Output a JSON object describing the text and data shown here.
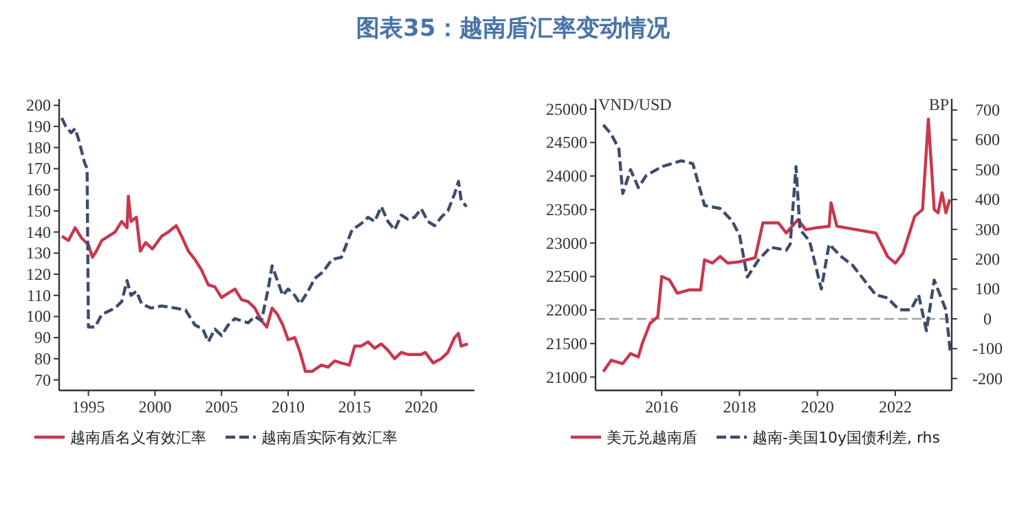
{
  "chart_data": [
    {
      "type": "line",
      "title": "图表35：越南盾汇率变动情况",
      "xlim": [
        1992.8,
        2024
      ],
      "xticks": [
        1995,
        2000,
        2005,
        2010,
        2015,
        2020
      ],
      "ylim": [
        65,
        203
      ],
      "yticks": [
        70,
        80,
        90,
        100,
        110,
        120,
        130,
        140,
        150,
        160,
        170,
        180,
        190,
        200
      ],
      "grid": false,
      "legend": "bottom",
      "series": [
        {
          "name": "越南盾名义有效汇率",
          "color": "#c8374e",
          "line_style": "solid",
          "x": [
            1993,
            1993.5,
            1994,
            1994.5,
            1995,
            1995.3,
            1995.6,
            1996,
            1997,
            1997.5,
            1997.9,
            1998,
            1998.2,
            1998.6,
            1998.9,
            1999.3,
            1999.8,
            2000.5,
            2001,
            2001.6,
            2002,
            2002.5,
            2003,
            2003.5,
            2004,
            2004.5,
            2005,
            2005.5,
            2006,
            2006.5,
            2007,
            2007.5,
            2008,
            2008.4,
            2008.8,
            2009.2,
            2009.6,
            2010,
            2010.5,
            2010.9,
            2011.3,
            2011.8,
            2012.5,
            2013,
            2013.5,
            2014,
            2014.6,
            2015,
            2015.5,
            2016,
            2016.5,
            2017,
            2017.5,
            2018,
            2018.5,
            2019,
            2020,
            2020.3,
            2020.9,
            2021.5,
            2022,
            2022.5,
            2022.8,
            2023,
            2023.5
          ],
          "values": [
            138,
            136,
            142,
            137,
            134,
            128,
            131,
            136,
            140,
            145,
            142,
            157,
            145,
            147,
            131,
            135,
            132,
            138,
            140,
            143,
            138,
            131,
            127,
            122,
            115,
            114,
            109,
            111,
            113,
            108,
            107,
            104,
            98,
            95,
            104,
            101,
            96,
            89,
            90,
            83,
            74,
            74,
            77,
            76,
            79,
            78,
            77,
            86,
            86,
            88,
            85,
            87,
            84,
            80,
            83,
            82,
            82,
            83,
            78,
            80,
            83,
            90,
            92,
            86,
            87
          ]
        },
        {
          "name": "越南盾实际有效汇率",
          "color": "#3d4b6c",
          "line_style": "dashed",
          "x": [
            1993,
            1993.3,
            1993.7,
            1994,
            1994.3,
            1994.7,
            1994.9,
            1995,
            1995.5,
            1996,
            1997,
            1997.5,
            1997.9,
            1998.2,
            1998.6,
            1999,
            1999.7,
            2000.5,
            2001.5,
            2002.3,
            2003,
            2003.6,
            2004,
            2004.5,
            2005,
            2005.5,
            2006,
            2007,
            2007.5,
            2008,
            2008.5,
            2008.8,
            2009.2,
            2009.6,
            2010,
            2010.5,
            2010.9,
            2011.5,
            2012,
            2012.6,
            2013.3,
            2014,
            2014.8,
            2015.5,
            2016,
            2016.5,
            2017,
            2017.5,
            2018,
            2018.5,
            2019,
            2019.5,
            2020,
            2020.5,
            2021,
            2021.5,
            2022,
            2022.5,
            2022.8,
            2023,
            2023.4
          ],
          "values": [
            194,
            190,
            187,
            189,
            183,
            173,
            170,
            95,
            95,
            101,
            104,
            107,
            117,
            110,
            112,
            106,
            104,
            105,
            104,
            103,
            96,
            94,
            88,
            94,
            91,
            96,
            99,
            97,
            100,
            98,
            113,
            124,
            117,
            110,
            113,
            110,
            106,
            112,
            118,
            121,
            127,
            128,
            141,
            144,
            147,
            145,
            152,
            145,
            141,
            148,
            146,
            147,
            151,
            145,
            143,
            147,
            150,
            158,
            164,
            155,
            152
          ]
        }
      ]
    },
    {
      "type": "line",
      "xlim": [
        2014.3,
        2023.45
      ],
      "xticks": [
        2016,
        2018,
        2020,
        2022
      ],
      "ylim": [
        20800,
        25150
      ],
      "yticks": [
        21000,
        21500,
        22000,
        22500,
        23000,
        23500,
        24000,
        24500,
        25000
      ],
      "y2lim": [
        -240,
        737
      ],
      "y2ticks": [
        {
          "value": -200,
          "label": "-200"
        },
        {
          "value": -100,
          "label": "-100"
        },
        0,
        100,
        200,
        300,
        400,
        500,
        600,
        700
      ],
      "ylabel": "VND/USD",
      "y2label": "BP",
      "grid": false,
      "legend": "bottom",
      "ref_lines": [
        {
          "axis": "y2",
          "value": 0,
          "color": "#999999",
          "line_style": "dashed"
        }
      ],
      "series": [
        {
          "name": "美元兑越南盾",
          "color": "#c8374e",
          "line_style": "solid",
          "x": [
            2014.5,
            2014.7,
            2015,
            2015.2,
            2015.4,
            2015.5,
            2015.7,
            2015.9,
            2016,
            2016.2,
            2016.4,
            2016.7,
            2017,
            2017.1,
            2017.3,
            2017.5,
            2017.7,
            2018,
            2018.4,
            2018.6,
            2019,
            2019.2,
            2019.5,
            2019.7,
            2020,
            2020.3,
            2020.35,
            2020.5,
            2021,
            2021.5,
            2021.8,
            2022,
            2022.2,
            2022.5,
            2022.7,
            2022.85,
            2023,
            2023.1,
            2023.2,
            2023.3,
            2023.4
          ],
          "values": [
            21080,
            21250,
            21200,
            21350,
            21300,
            21500,
            21800,
            21900,
            22500,
            22450,
            22250,
            22300,
            22300,
            22750,
            22700,
            22800,
            22700,
            22720,
            22780,
            23300,
            23300,
            23150,
            23350,
            23200,
            23230,
            23250,
            23600,
            23250,
            23200,
            23150,
            22800,
            22700,
            22850,
            23400,
            23500,
            24850,
            23500,
            23450,
            23750,
            23450,
            23650
          ]
        },
        {
          "name": "越南-美国10y国债利差, rhs",
          "color": "#3d4b6c",
          "line_style": "dashed",
          "axis": "y2",
          "x": [
            2014.5,
            2014.7,
            2014.9,
            2015,
            2015.2,
            2015.4,
            2015.6,
            2016,
            2016.5,
            2016.8,
            2017.1,
            2017.5,
            2017.8,
            2018,
            2018.2,
            2018.5,
            2018.8,
            2019.2,
            2019.3,
            2019.45,
            2019.55,
            2019.8,
            2020.1,
            2020.3,
            2020.6,
            2020.9,
            2021.2,
            2021.5,
            2021.8,
            2022.1,
            2022.4,
            2022.6,
            2022.8,
            2023,
            2023.3,
            2023.42
          ],
          "values": [
            650,
            620,
            570,
            420,
            500,
            440,
            480,
            510,
            530,
            520,
            380,
            370,
            330,
            280,
            140,
            200,
            240,
            230,
            250,
            510,
            300,
            260,
            100,
            250,
            210,
            180,
            130,
            80,
            70,
            30,
            30,
            80,
            -40,
            130,
            30,
            -120
          ]
        }
      ]
    }
  ]
}
